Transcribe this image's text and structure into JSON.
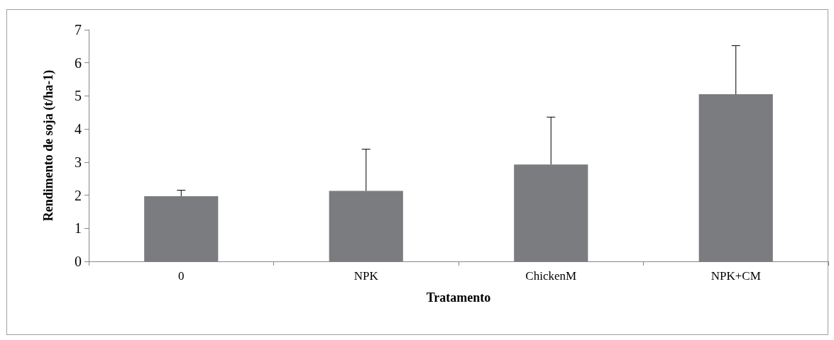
{
  "chart_data": {
    "type": "bar",
    "xlabel": "Tratamento",
    "ylabel": "Rendimento de soja (t/ha-1)",
    "categories": [
      "0",
      "NPK",
      "ChickenM",
      "NPK+CM"
    ],
    "values": [
      1.97,
      2.13,
      2.93,
      5.05
    ],
    "errors": [
      [
        1.97,
        2.15
      ],
      [
        2.13,
        3.39
      ],
      [
        2.93,
        4.36
      ],
      [
        5.05,
        6.52
      ]
    ],
    "color": "#7b7c80",
    "ylim": [
      0,
      7
    ],
    "yticks": [
      0,
      1,
      2,
      3,
      4,
      5,
      6,
      7
    ],
    "grid": false
  }
}
